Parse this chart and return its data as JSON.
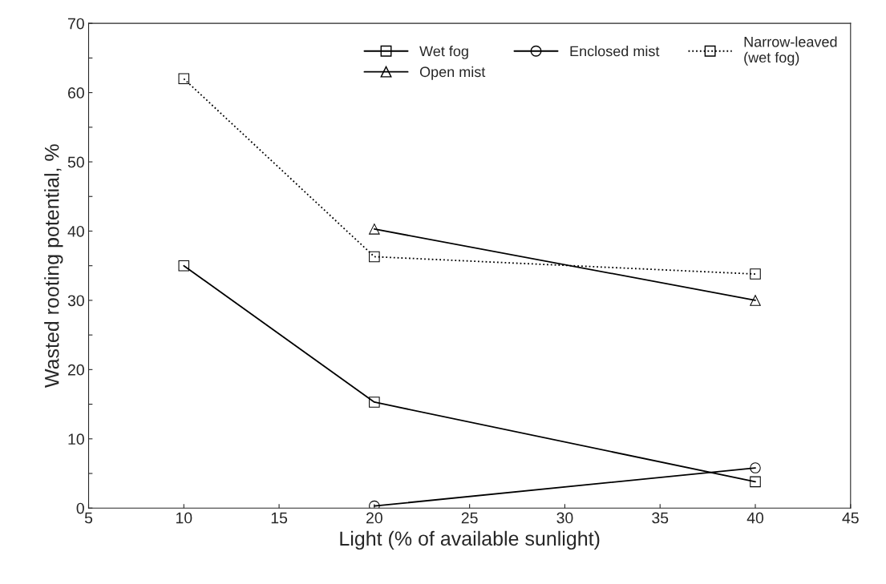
{
  "chart_data": {
    "type": "line",
    "xlabel": "Light (% of available sunlight)",
    "ylabel": "Wasted rooting potential, %",
    "xlim": [
      5,
      45
    ],
    "xticks": [
      5,
      10,
      15,
      20,
      25,
      30,
      35,
      40,
      45
    ],
    "ylim": [
      0,
      70
    ],
    "yticks": [
      0,
      {
        "value": 5,
        "label": null
      },
      10,
      {
        "value": 15,
        "label": null
      },
      20,
      {
        "value": 25,
        "label": null
      },
      30,
      {
        "value": 35,
        "label": null
      },
      40,
      {
        "value": 45,
        "label": null
      },
      50,
      {
        "value": 55,
        "label": null
      },
      60,
      {
        "value": 65,
        "label": null
      },
      70
    ],
    "grid": false,
    "legend": "top right",
    "series": [
      {
        "name": "Wet fog",
        "color": "#000000",
        "marker": "square",
        "line_style": "solid",
        "x": [
          10,
          20,
          40
        ],
        "values": [
          35,
          15.3,
          3.8
        ]
      },
      {
        "name": "Open mist",
        "color": "#000000",
        "marker": "triangle",
        "line_style": "solid",
        "x": [
          20,
          40
        ],
        "values": [
          40.3,
          30
        ]
      },
      {
        "name": "Enclosed mist",
        "color": "#000000",
        "marker": "circle",
        "line_style": "solid",
        "x": [
          20,
          40
        ],
        "values": [
          0.3,
          5.8
        ]
      },
      {
        "name": "Narrow-leaved\n(wet fog)",
        "color": "#000000",
        "marker": "square",
        "line_style": "dotted",
        "x": [
          10,
          20,
          40
        ],
        "values": [
          62,
          36.3,
          33.8
        ]
      }
    ]
  }
}
